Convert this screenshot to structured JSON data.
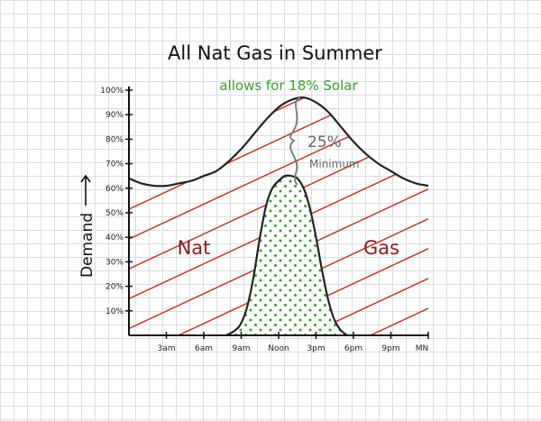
{
  "chart_data": {
    "type": "area",
    "title": "All Nat Gas in Summer",
    "subtitle": "allows for 18% Solar",
    "ylabel": "Demand",
    "ylim": [
      0,
      100
    ],
    "y_ticks": [
      "10%",
      "20%",
      "30%",
      "40%",
      "50%",
      "60%",
      "70%",
      "80%",
      "90%",
      "100%"
    ],
    "x_ticks": [
      "3am",
      "6am",
      "9am",
      "Noon",
      "3pm",
      "6pm",
      "9pm",
      "MN"
    ],
    "x_hours": [
      0,
      3,
      6,
      9,
      12,
      15,
      18,
      21,
      24
    ],
    "series": [
      {
        "name": "Nat Gas",
        "x": [
          0,
          1,
          2,
          3,
          4,
          5,
          6,
          7,
          8,
          9,
          10,
          11,
          12,
          13,
          14,
          15,
          16,
          17,
          18,
          19,
          20,
          21,
          22,
          23,
          24
        ],
        "values": [
          64,
          62,
          61,
          61,
          62,
          63,
          65,
          67,
          71,
          76,
          82,
          88,
          93,
          96,
          97,
          95,
          91,
          85,
          79,
          74,
          70,
          67,
          64,
          62,
          61
        ]
      },
      {
        "name": "Solar",
        "x": [
          7.8,
          8.5,
          9,
          9.5,
          10,
          10.5,
          11,
          11.5,
          12,
          12.5,
          13,
          13.5,
          14,
          14.5,
          15,
          15.5,
          16,
          16.5,
          17,
          17.5
        ],
        "values": [
          0,
          2,
          5,
          12,
          24,
          40,
          53,
          60,
          63,
          65,
          65,
          64,
          60,
          52,
          40,
          26,
          14,
          6,
          2,
          0
        ]
      }
    ],
    "annotations": [
      {
        "text": "25%",
        "note": "Minimum"
      }
    ],
    "region_labels": [
      "Nat",
      "Gas"
    ],
    "colors": {
      "gas_hatch": "#c0392b",
      "solar_dots": "#3e9a2f",
      "curve": "#222222",
      "annotation": "#777777"
    }
  }
}
